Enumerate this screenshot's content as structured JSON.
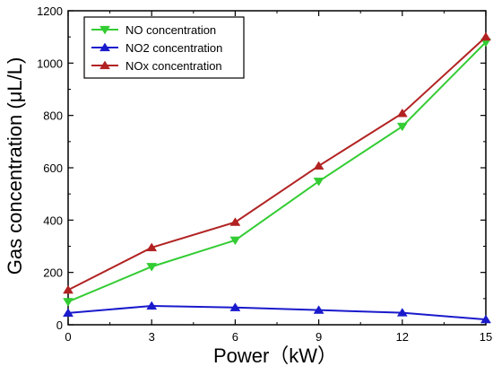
{
  "chart_data": {
    "type": "line",
    "title": "",
    "xlabel": "Power（kW）",
    "ylabel": "Gas concentration (μL/L)",
    "x": [
      0,
      3,
      6,
      9,
      12,
      15
    ],
    "xlim": [
      0,
      15
    ],
    "ylim": [
      0,
      1200
    ],
    "xticks": [
      0,
      3,
      6,
      9,
      12,
      15
    ],
    "yticks": [
      0,
      200,
      400,
      600,
      800,
      1000,
      1200
    ],
    "grid": false,
    "legend_position": "top-left",
    "series": [
      {
        "name": "NO concentration",
        "values": [
          88,
          222,
          323,
          548,
          758,
          1080
        ],
        "color": "#33cc33",
        "marker": "triangle-down"
      },
      {
        "name": "NO2 concentration",
        "values": [
          45,
          72,
          66,
          56,
          46,
          20
        ],
        "color": "#1a1acc",
        "marker": "triangle-up"
      },
      {
        "name": "NOx concentration",
        "values": [
          133,
          295,
          392,
          607,
          808,
          1100
        ],
        "color": "#b22222",
        "marker": "triangle-up"
      }
    ]
  }
}
